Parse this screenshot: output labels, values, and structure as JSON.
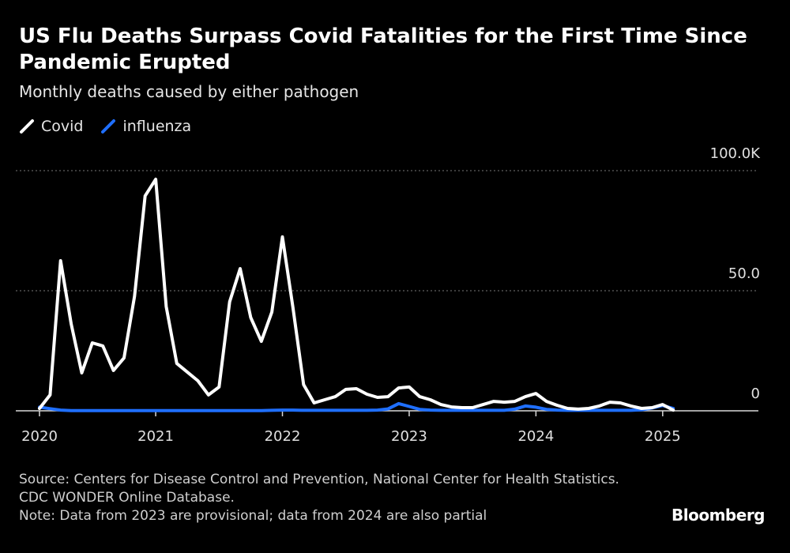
{
  "chart_data": {
    "type": "line",
    "title": "US Flu Deaths Surpass Covid Fatalities for the First Time Since Pandemic Erupted",
    "subtitle": "Monthly deaths caused by either pathogen",
    "categories": [
      "2020",
      null,
      null,
      null,
      null,
      null,
      null,
      null,
      null,
      null,
      null,
      "2021",
      null,
      null,
      null,
      null,
      null,
      null,
      null,
      null,
      null,
      null,
      null,
      "2022",
      null,
      null,
      null,
      null,
      null,
      null,
      null,
      null,
      null,
      null,
      null,
      "2023",
      null,
      null,
      null,
      null,
      null,
      null,
      null,
      null,
      null,
      null,
      null,
      "2024",
      null,
      null,
      null,
      null,
      null,
      null,
      null,
      null,
      null,
      null,
      null,
      "2025",
      null
    ],
    "series": [
      {
        "name": "Covid",
        "color": "#ffffff",
        "values": [
          1000,
          6600,
          62500,
          36200,
          15800,
          28300,
          27000,
          16800,
          22000,
          47700,
          89500,
          96400,
          43400,
          19700,
          16100,
          12500,
          6600,
          9900,
          45400,
          59200,
          38800,
          28900,
          41100,
          72400,
          42800,
          10900,
          3300,
          4600,
          5900,
          8900,
          9200,
          6900,
          5600,
          5900,
          9500,
          9900,
          5900,
          4600,
          2600,
          1600,
          1300,
          1300,
          2600,
          3900,
          3600,
          3900,
          5900,
          7200,
          3900,
          2300,
          1000,
          700,
          1000,
          2000,
          3600,
          3300,
          2000,
          1000,
          1300,
          2600,
          300
        ]
      },
      {
        "name": "influenza",
        "color": "#1f6fff",
        "values": [
          1500,
          900,
          300,
          100,
          100,
          100,
          100,
          100,
          100,
          100,
          100,
          100,
          100,
          100,
          100,
          100,
          100,
          100,
          100,
          100,
          100,
          100,
          200,
          300,
          300,
          200,
          200,
          200,
          200,
          200,
          200,
          200,
          300,
          800,
          3000,
          1800,
          600,
          300,
          200,
          200,
          200,
          200,
          200,
          200,
          200,
          700,
          2000,
          1500,
          600,
          300,
          200,
          200,
          200,
          200,
          200,
          200,
          200,
          400,
          1200,
          2200,
          1000
        ]
      }
    ],
    "ylim": [
      0,
      100000
    ],
    "yticks": [
      0,
      {
        "value": 50000,
        "label": "50.0"
      },
      {
        "value": 100000,
        "label": "100.0K"
      }
    ],
    "grid": true,
    "source": "Source: Centers for Disease Control and Prevention, National Center for Health Statistics. CDC WONDER Online Database.",
    "note": "Note: Data from 2023 are provisional; data from 2024 are also partial",
    "brand": "Bloomberg"
  }
}
